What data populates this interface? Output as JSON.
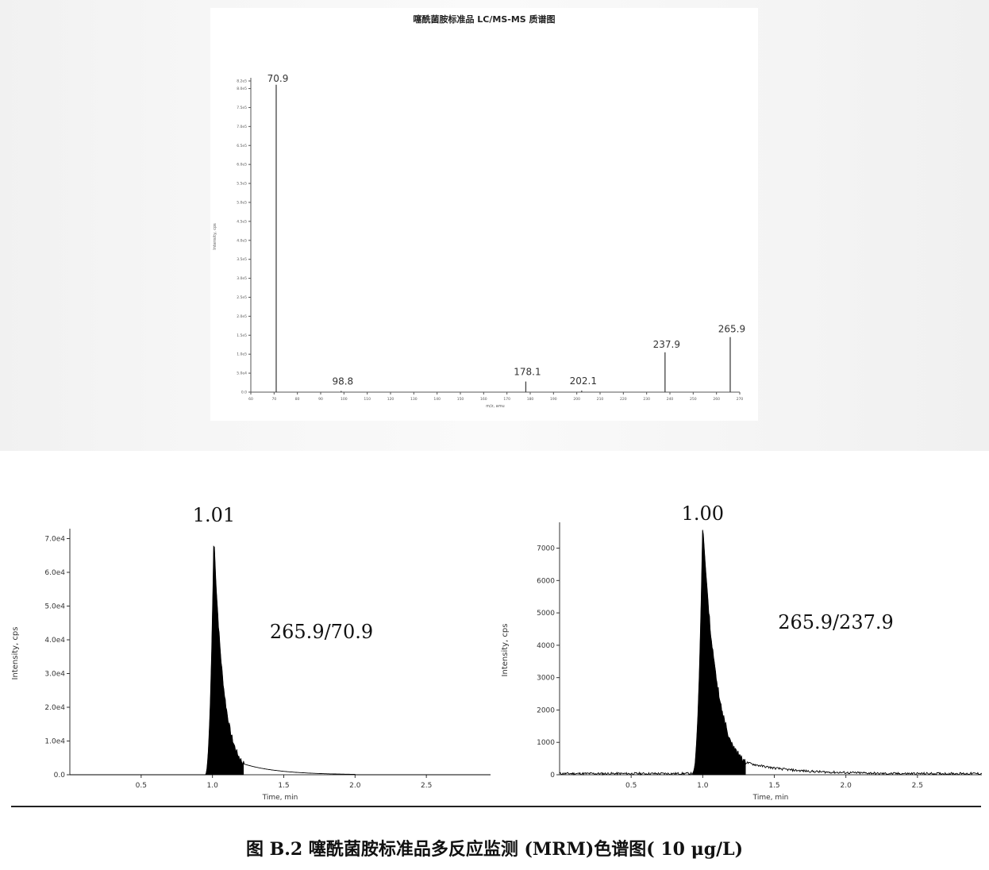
{
  "chart_data": [
    {
      "type": "bar",
      "title": "噻酰菌胺标准品 LC/MS-MS 质谱图",
      "xlabel": "m/z, amu",
      "ylabel": "Intensity, cps",
      "xlim": [
        60,
        270
      ],
      "ylim": [
        0,
        8.2
      ],
      "x_ticks": [
        60,
        70,
        80,
        90,
        100,
        110,
        120,
        130,
        140,
        150,
        160,
        170,
        180,
        190,
        200,
        210,
        220,
        230,
        240,
        250,
        260,
        270
      ],
      "y_ticks": [
        {
          "v": 0.0,
          "label": "0.0"
        },
        {
          "v": 0.5,
          "label": "5.0e4"
        },
        {
          "v": 1.0,
          "label": "1.0e5"
        },
        {
          "v": 1.5,
          "label": "1.5e5"
        },
        {
          "v": 2.0,
          "label": "2.0e5"
        },
        {
          "v": 2.5,
          "label": "2.5e5"
        },
        {
          "v": 3.0,
          "label": "3.0e5"
        },
        {
          "v": 3.5,
          "label": "3.5e5"
        },
        {
          "v": 4.0,
          "label": "4.0e5"
        },
        {
          "v": 4.5,
          "label": "4.5e5"
        },
        {
          "v": 5.0,
          "label": "5.0e5"
        },
        {
          "v": 5.5,
          "label": "5.5e5"
        },
        {
          "v": 6.0,
          "label": "6.0e5"
        },
        {
          "v": 6.5,
          "label": "6.5e5"
        },
        {
          "v": 7.0,
          "label": "7.0e5"
        },
        {
          "v": 7.5,
          "label": "7.5e5"
        },
        {
          "v": 8.0,
          "label": "8.0e5"
        },
        {
          "v": 8.2,
          "label": "8.2e5"
        }
      ],
      "peaks": [
        {
          "x": 70.9,
          "y": 8.1,
          "label": "70.9"
        },
        {
          "x": 98.8,
          "y": 0.03,
          "label": "98.8"
        },
        {
          "x": 178.1,
          "y": 0.28,
          "label": "178.1"
        },
        {
          "x": 202.1,
          "y": 0.04,
          "label": "202.1"
        },
        {
          "x": 237.9,
          "y": 1.05,
          "label": "237.9"
        },
        {
          "x": 265.9,
          "y": 1.45,
          "label": "265.9"
        }
      ]
    },
    {
      "type": "area",
      "xlabel": "Time, min",
      "ylabel": "Intensity, cps",
      "xlim": [
        0,
        2.95
      ],
      "ylim": [
        0,
        72000
      ],
      "x_ticks": [
        0.5,
        1.0,
        1.5,
        2.0,
        2.5
      ],
      "x_tick_labels": [
        "0.5",
        "1.0",
        "1.5",
        "2.0",
        "2.5"
      ],
      "y_ticks": [
        0,
        10000,
        20000,
        30000,
        40000,
        50000,
        60000,
        70000
      ],
      "y_tick_labels": [
        "0.0",
        "1.0e4",
        "2.0e4",
        "3.0e4",
        "4.0e4",
        "5.0e4",
        "6.0e4",
        "7.0e4"
      ],
      "peak_label": "1.01",
      "transition_label": "265.9/70.9",
      "peak": {
        "apex_time": 1.01,
        "apex": 71000,
        "start": 0.95,
        "end": 1.22,
        "tail_end": 2.0,
        "noise": 0
      }
    },
    {
      "type": "area",
      "xlabel": "Time, min",
      "ylabel": "Intensity, cps",
      "xlim": [
        0,
        2.95
      ],
      "ylim": [
        0,
        7700
      ],
      "x_ticks": [
        0.5,
        1.0,
        1.5,
        2.0,
        2.5
      ],
      "x_tick_labels": [
        "0.5",
        "1.0",
        "1.5",
        "2.0",
        "2.5"
      ],
      "y_ticks": [
        0,
        1000,
        2000,
        3000,
        4000,
        5000,
        6000,
        7000
      ],
      "y_tick_labels": [
        "0",
        "1000",
        "2000",
        "3000",
        "4000",
        "5000",
        "6000",
        "7000"
      ],
      "peak_label": "1.00",
      "transition_label": "265.9/237.9",
      "peak": {
        "apex_time": 1.0,
        "apex": 7750,
        "start": 0.93,
        "end": 1.3,
        "tail_end": 2.2,
        "noise": 30
      }
    }
  ],
  "caption": "图 B.2  噻酰菌胺标准品多反应监测 (MRM)色谱图( 10 μg/L)"
}
